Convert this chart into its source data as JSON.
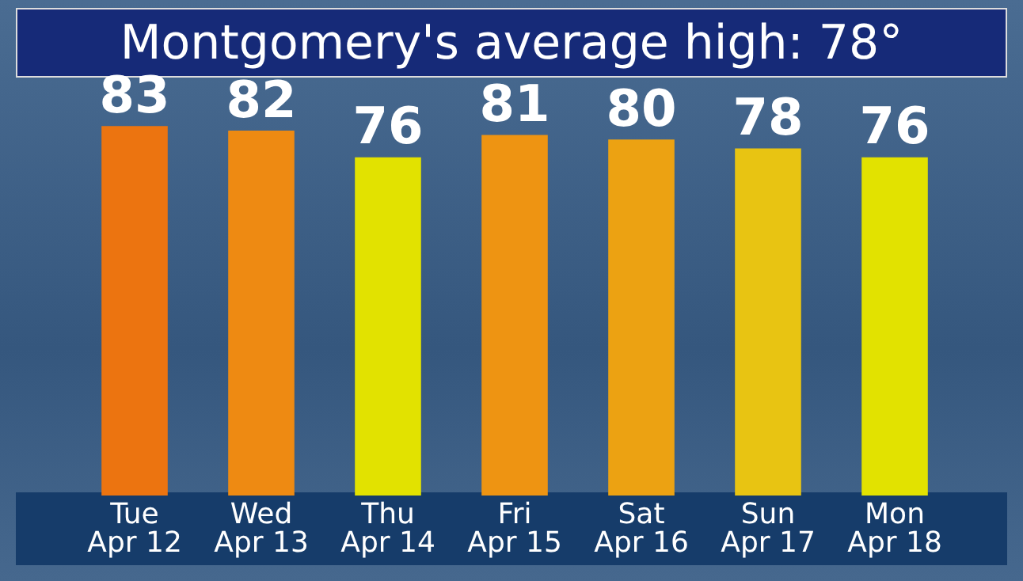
{
  "chart_data": {
    "type": "bar",
    "title": "Montgomery's average high: 78°",
    "categories": [
      "Tue\nApr 12",
      "Wed\nApr 13",
      "Thu\nApr 14",
      "Fri\nApr 15",
      "Sat\nApr 16",
      "Sun\nApr 17",
      "Mon\nApr 18"
    ],
    "values": [
      83,
      82,
      76,
      81,
      80,
      78,
      76
    ],
    "colors": [
      "#ec7410",
      "#ee8a12",
      "#e2e200",
      "#ee9412",
      "#eca212",
      "#e8c412",
      "#e2e200"
    ],
    "data_labels": true,
    "grid": false,
    "legend": false
  }
}
